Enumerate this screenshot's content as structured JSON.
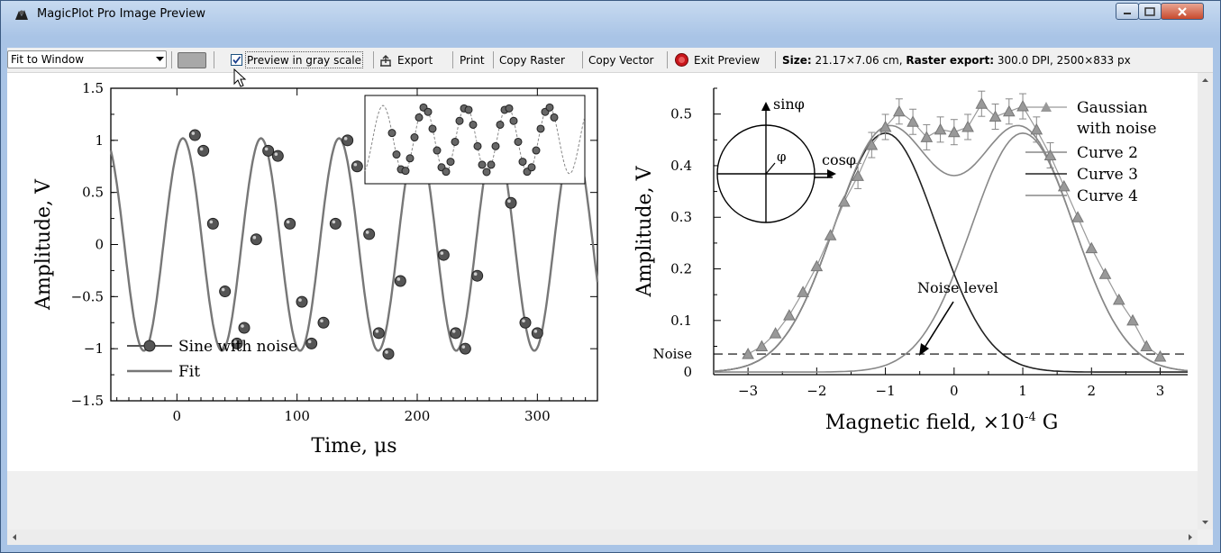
{
  "window": {
    "title": "MagicPlot Pro Image Preview"
  },
  "toolbar": {
    "zoom_value": "Fit to Window",
    "gray_scale_label": "Preview in gray scale",
    "gray_scale_checked": true,
    "export_label": "Export",
    "print_label": "Print",
    "copy_raster_label": "Copy Raster",
    "copy_vector_label": "Copy Vector",
    "exit_preview_label": "Exit Preview",
    "size_label": "Size:",
    "size_value": "21.17×7.06 cm,",
    "raster_export_label": "Raster export:",
    "raster_export_value": "300.0 DPI, 2500×833 px"
  },
  "chart_data": [
    {
      "type": "scatter",
      "xlabel": "Time, μs",
      "ylabel": "Amplitude, V",
      "xlim": [
        -55,
        350
      ],
      "ylim": [
        -1.5,
        1.5
      ],
      "xticks": [
        "0",
        "100",
        "200",
        "300"
      ],
      "yticks": [
        "1.5",
        "1",
        "0.5",
        "0",
        "−0.5",
        "−1",
        "−1.5"
      ],
      "legend": [
        "Sine with noise",
        "Fit"
      ],
      "legend_position": "bottom-left",
      "series": [
        {
          "name": "Sine with noise",
          "x": [
            15,
            22,
            30,
            40,
            50,
            56,
            66,
            76,
            84,
            94,
            104,
            112,
            122,
            132,
            142,
            150,
            160,
            168,
            176,
            186,
            196,
            206,
            212,
            222,
            232,
            240,
            250,
            260,
            268,
            278,
            290,
            300
          ],
          "y": [
            1.05,
            0.9,
            0.2,
            -0.45,
            -0.95,
            -0.8,
            0.05,
            0.9,
            0.85,
            0.2,
            -0.55,
            -0.95,
            -0.75,
            0.2,
            1.0,
            0.75,
            0.1,
            -0.85,
            -1.05,
            -0.35,
            0.7,
            0.9,
            0.8,
            -0.1,
            -0.85,
            -1.0,
            -0.3,
            0.75,
            0.9,
            0.4,
            -0.75,
            -0.85
          ]
        },
        {
          "name": "Fit",
          "model": "sine",
          "x_range": [
            -55,
            350
          ]
        }
      ],
      "inset": "zoomed view of the same data"
    },
    {
      "type": "line",
      "xlabel": "Magnetic field, ×10",
      "xlabel_superscript": "-4",
      "xlabel_unit": " G",
      "ylabel": "Amplitude, V",
      "xlim": [
        -3.5,
        3.4
      ],
      "ylim": [
        -0.005,
        0.55
      ],
      "xticks": [
        "−3",
        "−2",
        "−1",
        "0",
        "1",
        "2",
        "3"
      ],
      "yticks": [
        "0.5",
        "0.4",
        "0.3",
        "0.2",
        "0.1",
        "0"
      ],
      "noise_label": "Noise",
      "noise_level": 0.035,
      "annotation": "Noise level",
      "circle_labels": {
        "sin": "sinφ",
        "cos": "cosφ",
        "phi": "φ"
      },
      "legend": [
        "Gaussian with noise",
        "Curve 2",
        "Curve 3",
        "Curve 4"
      ],
      "legend_position": "top-right",
      "series": [
        {
          "name": "Gaussian with noise",
          "x": [
            -3,
            -2.8,
            -2.6,
            -2.4,
            -2.2,
            -2,
            -1.8,
            -1.6,
            -1.4,
            -1.2,
            -1,
            -0.8,
            -0.6,
            -0.4,
            -0.2,
            0,
            0.2,
            0.4,
            0.6,
            0.8,
            1,
            1.2,
            1.4,
            1.6,
            1.8,
            2,
            2.2,
            2.4,
            2.6,
            2.8,
            3
          ],
          "y": [
            0.035,
            0.05,
            0.075,
            0.11,
            0.155,
            0.205,
            0.265,
            0.33,
            0.38,
            0.44,
            0.475,
            0.505,
            0.485,
            0.455,
            0.47,
            0.465,
            0.475,
            0.52,
            0.495,
            0.505,
            0.515,
            0.47,
            0.42,
            0.36,
            0.3,
            0.24,
            0.19,
            0.14,
            0.1,
            0.05,
            0.03
          ]
        },
        {
          "name": "Curve 2",
          "model": "sum of two gaussians"
        },
        {
          "name": "Curve 3",
          "model": "gaussian",
          "center": -1,
          "amplitude": 0.463,
          "sigma": 0.75
        },
        {
          "name": "Curve 4",
          "model": "gaussian",
          "center": 1,
          "amplitude": 0.463,
          "sigma": 0.75
        }
      ]
    }
  ]
}
